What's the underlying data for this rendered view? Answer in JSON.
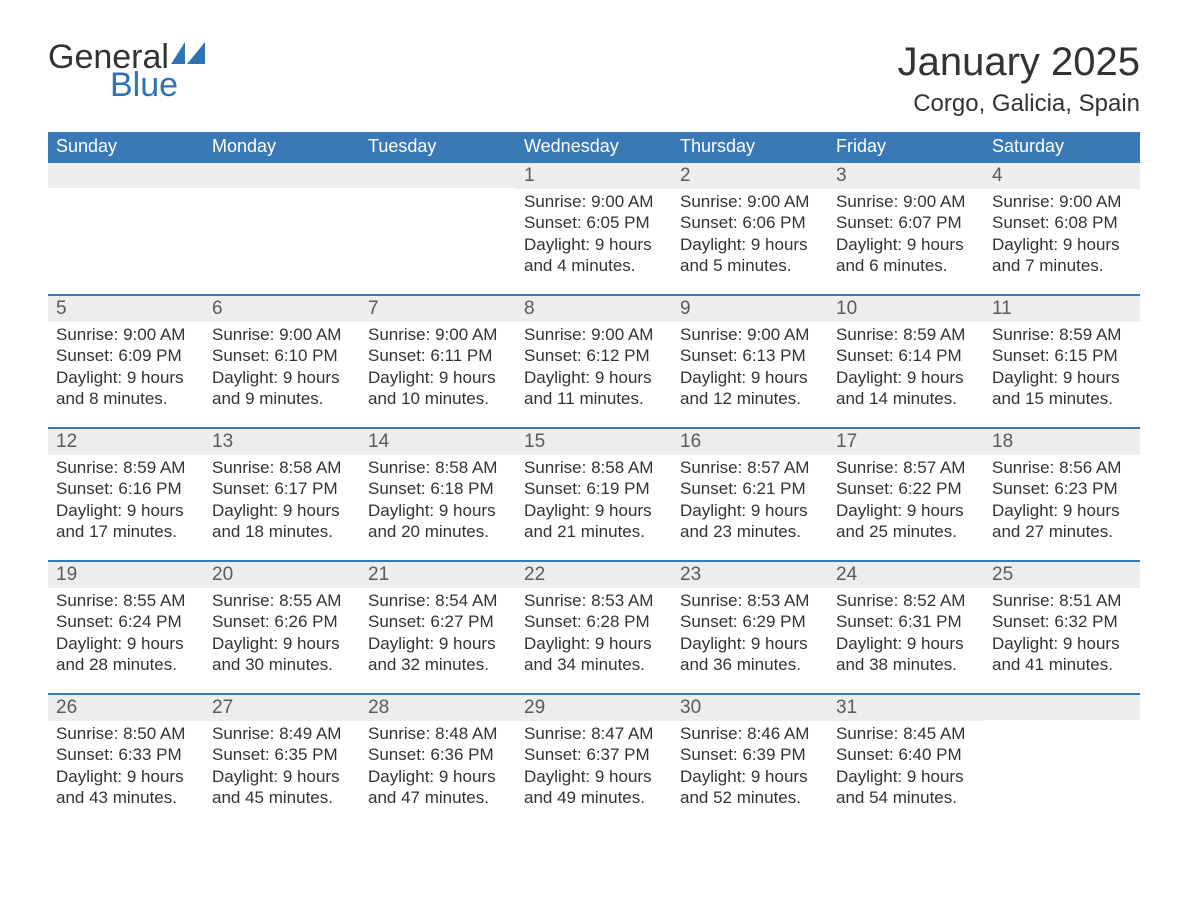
{
  "logo": {
    "text1": "General",
    "text2": "Blue",
    "sail_color": "#2e74b5",
    "text1_color": "#333333"
  },
  "header": {
    "month_title": "January 2025",
    "location": "Corgo, Galicia, Spain"
  },
  "colors": {
    "header_bg": "#3879b6",
    "header_text": "#ffffff",
    "band_bg": "#ededed",
    "week_divider": "#3879b6",
    "body_text": "#333333"
  },
  "weekdays": [
    "Sunday",
    "Monday",
    "Tuesday",
    "Wednesday",
    "Thursday",
    "Friday",
    "Saturday"
  ],
  "weeks": [
    [
      null,
      null,
      null,
      {
        "n": "1",
        "sunrise": "Sunrise: 9:00 AM",
        "sunset": "Sunset: 6:05 PM",
        "day1": "Daylight: 9 hours",
        "day2": "and 4 minutes."
      },
      {
        "n": "2",
        "sunrise": "Sunrise: 9:00 AM",
        "sunset": "Sunset: 6:06 PM",
        "day1": "Daylight: 9 hours",
        "day2": "and 5 minutes."
      },
      {
        "n": "3",
        "sunrise": "Sunrise: 9:00 AM",
        "sunset": "Sunset: 6:07 PM",
        "day1": "Daylight: 9 hours",
        "day2": "and 6 minutes."
      },
      {
        "n": "4",
        "sunrise": "Sunrise: 9:00 AM",
        "sunset": "Sunset: 6:08 PM",
        "day1": "Daylight: 9 hours",
        "day2": "and 7 minutes."
      }
    ],
    [
      {
        "n": "5",
        "sunrise": "Sunrise: 9:00 AM",
        "sunset": "Sunset: 6:09 PM",
        "day1": "Daylight: 9 hours",
        "day2": "and 8 minutes."
      },
      {
        "n": "6",
        "sunrise": "Sunrise: 9:00 AM",
        "sunset": "Sunset: 6:10 PM",
        "day1": "Daylight: 9 hours",
        "day2": "and 9 minutes."
      },
      {
        "n": "7",
        "sunrise": "Sunrise: 9:00 AM",
        "sunset": "Sunset: 6:11 PM",
        "day1": "Daylight: 9 hours",
        "day2": "and 10 minutes."
      },
      {
        "n": "8",
        "sunrise": "Sunrise: 9:00 AM",
        "sunset": "Sunset: 6:12 PM",
        "day1": "Daylight: 9 hours",
        "day2": "and 11 minutes."
      },
      {
        "n": "9",
        "sunrise": "Sunrise: 9:00 AM",
        "sunset": "Sunset: 6:13 PM",
        "day1": "Daylight: 9 hours",
        "day2": "and 12 minutes."
      },
      {
        "n": "10",
        "sunrise": "Sunrise: 8:59 AM",
        "sunset": "Sunset: 6:14 PM",
        "day1": "Daylight: 9 hours",
        "day2": "and 14 minutes."
      },
      {
        "n": "11",
        "sunrise": "Sunrise: 8:59 AM",
        "sunset": "Sunset: 6:15 PM",
        "day1": "Daylight: 9 hours",
        "day2": "and 15 minutes."
      }
    ],
    [
      {
        "n": "12",
        "sunrise": "Sunrise: 8:59 AM",
        "sunset": "Sunset: 6:16 PM",
        "day1": "Daylight: 9 hours",
        "day2": "and 17 minutes."
      },
      {
        "n": "13",
        "sunrise": "Sunrise: 8:58 AM",
        "sunset": "Sunset: 6:17 PM",
        "day1": "Daylight: 9 hours",
        "day2": "and 18 minutes."
      },
      {
        "n": "14",
        "sunrise": "Sunrise: 8:58 AM",
        "sunset": "Sunset: 6:18 PM",
        "day1": "Daylight: 9 hours",
        "day2": "and 20 minutes."
      },
      {
        "n": "15",
        "sunrise": "Sunrise: 8:58 AM",
        "sunset": "Sunset: 6:19 PM",
        "day1": "Daylight: 9 hours",
        "day2": "and 21 minutes."
      },
      {
        "n": "16",
        "sunrise": "Sunrise: 8:57 AM",
        "sunset": "Sunset: 6:21 PM",
        "day1": "Daylight: 9 hours",
        "day2": "and 23 minutes."
      },
      {
        "n": "17",
        "sunrise": "Sunrise: 8:57 AM",
        "sunset": "Sunset: 6:22 PM",
        "day1": "Daylight: 9 hours",
        "day2": "and 25 minutes."
      },
      {
        "n": "18",
        "sunrise": "Sunrise: 8:56 AM",
        "sunset": "Sunset: 6:23 PM",
        "day1": "Daylight: 9 hours",
        "day2": "and 27 minutes."
      }
    ],
    [
      {
        "n": "19",
        "sunrise": "Sunrise: 8:55 AM",
        "sunset": "Sunset: 6:24 PM",
        "day1": "Daylight: 9 hours",
        "day2": "and 28 minutes."
      },
      {
        "n": "20",
        "sunrise": "Sunrise: 8:55 AM",
        "sunset": "Sunset: 6:26 PM",
        "day1": "Daylight: 9 hours",
        "day2": "and 30 minutes."
      },
      {
        "n": "21",
        "sunrise": "Sunrise: 8:54 AM",
        "sunset": "Sunset: 6:27 PM",
        "day1": "Daylight: 9 hours",
        "day2": "and 32 minutes."
      },
      {
        "n": "22",
        "sunrise": "Sunrise: 8:53 AM",
        "sunset": "Sunset: 6:28 PM",
        "day1": "Daylight: 9 hours",
        "day2": "and 34 minutes."
      },
      {
        "n": "23",
        "sunrise": "Sunrise: 8:53 AM",
        "sunset": "Sunset: 6:29 PM",
        "day1": "Daylight: 9 hours",
        "day2": "and 36 minutes."
      },
      {
        "n": "24",
        "sunrise": "Sunrise: 8:52 AM",
        "sunset": "Sunset: 6:31 PM",
        "day1": "Daylight: 9 hours",
        "day2": "and 38 minutes."
      },
      {
        "n": "25",
        "sunrise": "Sunrise: 8:51 AM",
        "sunset": "Sunset: 6:32 PM",
        "day1": "Daylight: 9 hours",
        "day2": "and 41 minutes."
      }
    ],
    [
      {
        "n": "26",
        "sunrise": "Sunrise: 8:50 AM",
        "sunset": "Sunset: 6:33 PM",
        "day1": "Daylight: 9 hours",
        "day2": "and 43 minutes."
      },
      {
        "n": "27",
        "sunrise": "Sunrise: 8:49 AM",
        "sunset": "Sunset: 6:35 PM",
        "day1": "Daylight: 9 hours",
        "day2": "and 45 minutes."
      },
      {
        "n": "28",
        "sunrise": "Sunrise: 8:48 AM",
        "sunset": "Sunset: 6:36 PM",
        "day1": "Daylight: 9 hours",
        "day2": "and 47 minutes."
      },
      {
        "n": "29",
        "sunrise": "Sunrise: 8:47 AM",
        "sunset": "Sunset: 6:37 PM",
        "day1": "Daylight: 9 hours",
        "day2": "and 49 minutes."
      },
      {
        "n": "30",
        "sunrise": "Sunrise: 8:46 AM",
        "sunset": "Sunset: 6:39 PM",
        "day1": "Daylight: 9 hours",
        "day2": "and 52 minutes."
      },
      {
        "n": "31",
        "sunrise": "Sunrise: 8:45 AM",
        "sunset": "Sunset: 6:40 PM",
        "day1": "Daylight: 9 hours",
        "day2": "and 54 minutes."
      },
      null
    ]
  ]
}
